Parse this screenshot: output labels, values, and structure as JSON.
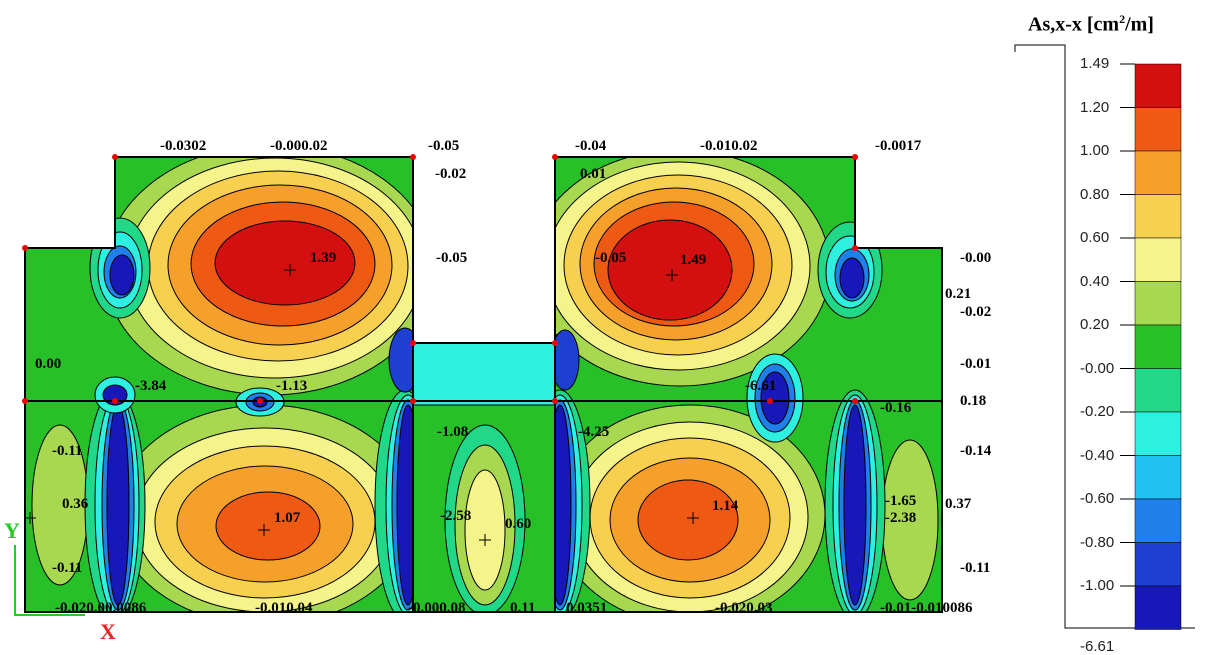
{
  "legend": {
    "title_prefix": "As,x-x [cm",
    "title_sup": "2",
    "title_suffix": "/m]",
    "levels": [
      "1.49",
      "1.20",
      "1.00",
      "0.80",
      "0.60",
      "0.40",
      "0.20",
      "-0.00",
      "-0.20",
      "-0.40",
      "-0.60",
      "-0.80",
      "-1.00",
      "-6.61"
    ],
    "colors": [
      "#d40f0f",
      "#ee5a14",
      "#f5a02a",
      "#f8d050",
      "#f4f48a",
      "#a8d850",
      "#28c028",
      "#20d888",
      "#2ef0e0",
      "#20c0f0",
      "#1e80e8",
      "#1e40d0",
      "#1818b8"
    ]
  },
  "labels": {
    "peak_top_left": "1.39",
    "peak_top_right": "1.49",
    "peak_bottom_left": "1.07",
    "peak_bottom_right": "1.14",
    "mid_center": "0.60",
    "left_edge": "0.36",
    "right_edge": "0.37",
    "val_minus_005_a": "-0.05",
    "val_minus_005_b": "-0.05",
    "val_minus_002_top": "-0.02",
    "val_minus_011_a": "-0.11",
    "val_minus_011_b": "-0.11",
    "val_minus_011_c": "-0.11",
    "val_minus_014": "-0.14",
    "val_minus_001": "-0.01",
    "val_minus_000": "-0.00",
    "val_021": "0.21",
    "val_minus_002_r": "-0.02",
    "val_001": "0.01",
    "val_0_00": "0.00",
    "val_minus_113": "-1.13",
    "val_minus_384": "-3.84",
    "val_minus_108": "-1.08",
    "val_minus_425": "-4.25",
    "val_minus_661": "-6.61",
    "val_minus_258": "-2.58",
    "val_minus_165": "-1.65",
    "val_minus_238": "-2.38",
    "val_011": "0.11",
    "val_minus_0_16": "-0.16",
    "val_0_18": "0.18",
    "top_label_1": "-0.0302",
    "top_label_2": "-0.000.02",
    "top_label_3": "-0.05",
    "top_label_4": "-0.04",
    "top_label_5": "-0.010.02",
    "top_label_6": "-0.0017",
    "bot_label_1": "-0.020.00.0086",
    "bot_label_2": "-0.010.04",
    "bot_label_3": "-0.000.08",
    "bot_label_4": "0.0351",
    "bot_label_5": "-0.020.03",
    "bot_label_6": "-0.01-0.010086",
    "axis_y": "Y",
    "axis_x": "X"
  }
}
